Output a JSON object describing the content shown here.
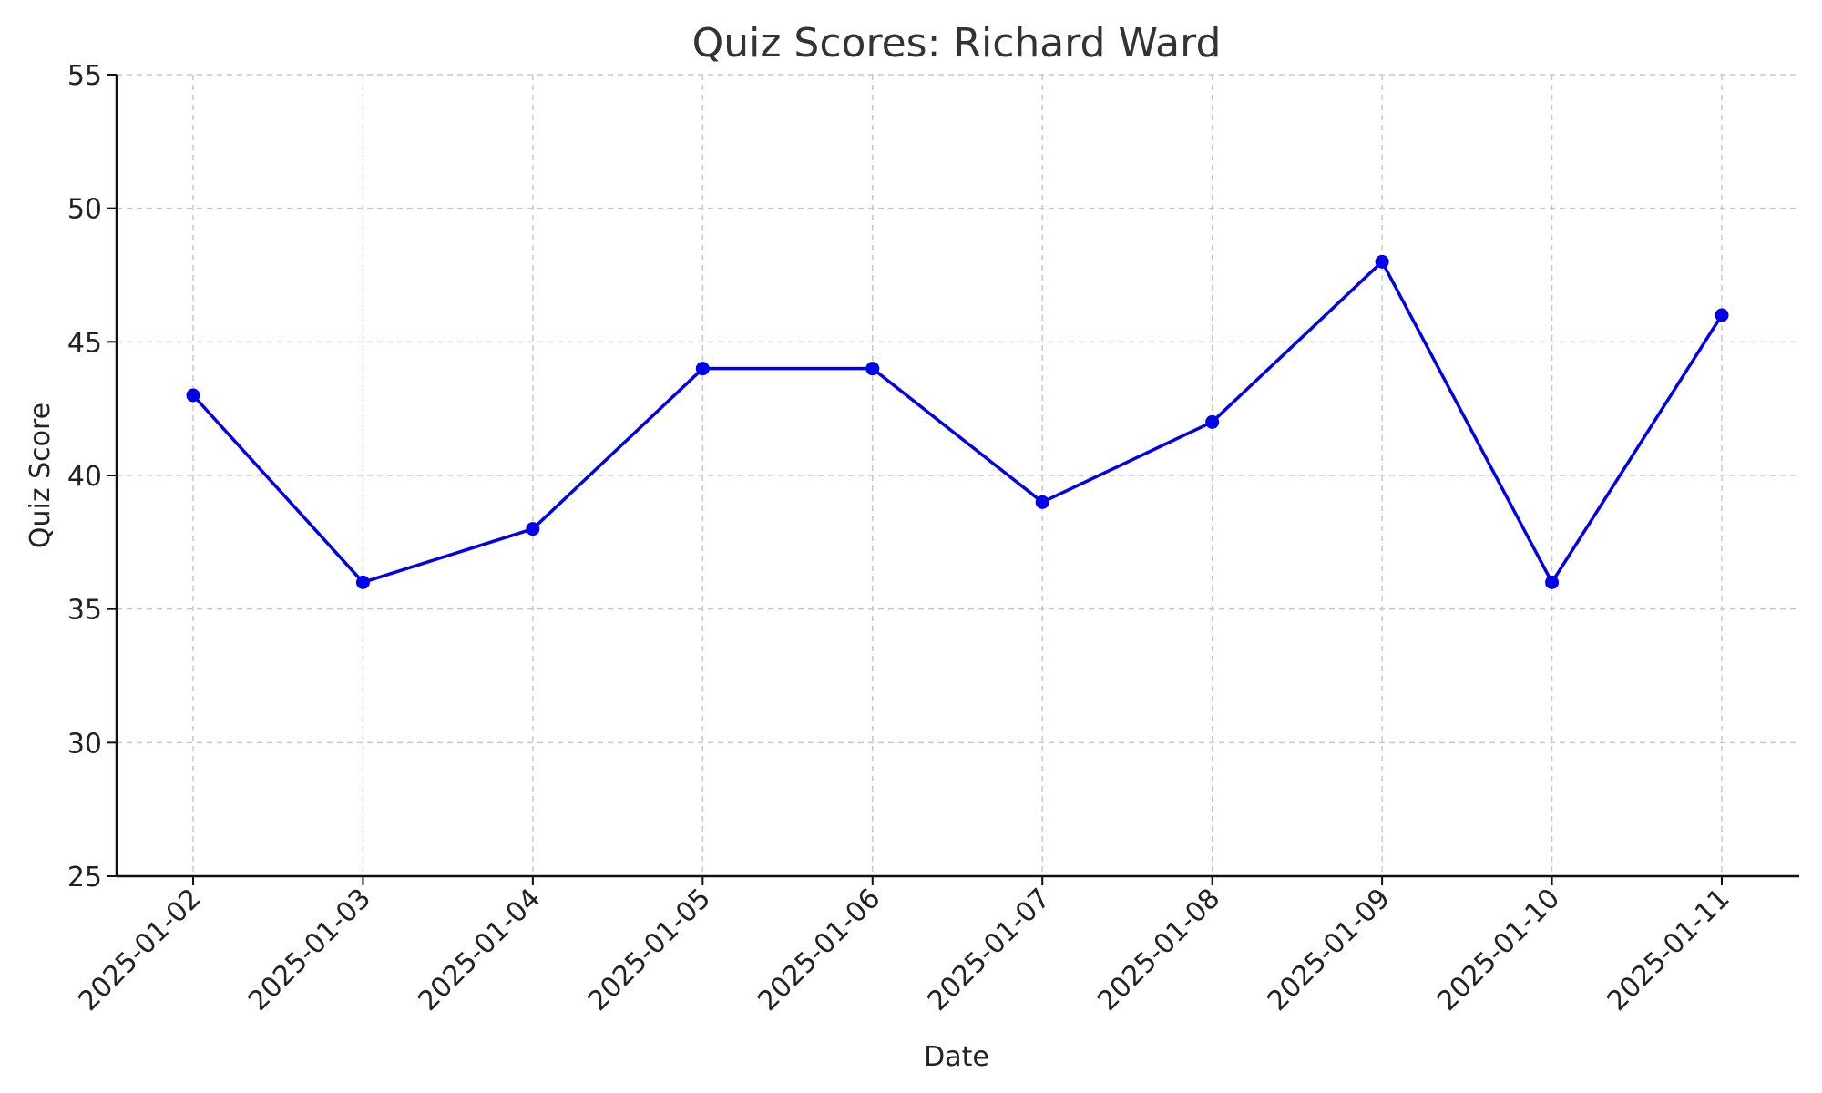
{
  "chart_data": {
    "type": "line",
    "title": "Quiz Scores: Richard Ward",
    "xlabel": "Date",
    "ylabel": "Quiz Score",
    "x": [
      "2025-01-02",
      "2025-01-03",
      "2025-01-04",
      "2025-01-05",
      "2025-01-06",
      "2025-01-07",
      "2025-01-08",
      "2025-01-09",
      "2025-01-10",
      "2025-01-11"
    ],
    "series": [
      {
        "values": [
          43,
          36,
          38,
          44,
          44,
          39,
          42,
          48,
          36,
          46
        ],
        "color": "#0000ee",
        "marker": "circle"
      }
    ],
    "ylim": [
      25,
      55
    ],
    "yticks": [
      25,
      30,
      35,
      40,
      45,
      50,
      55
    ],
    "grid": true,
    "legend": "none"
  }
}
